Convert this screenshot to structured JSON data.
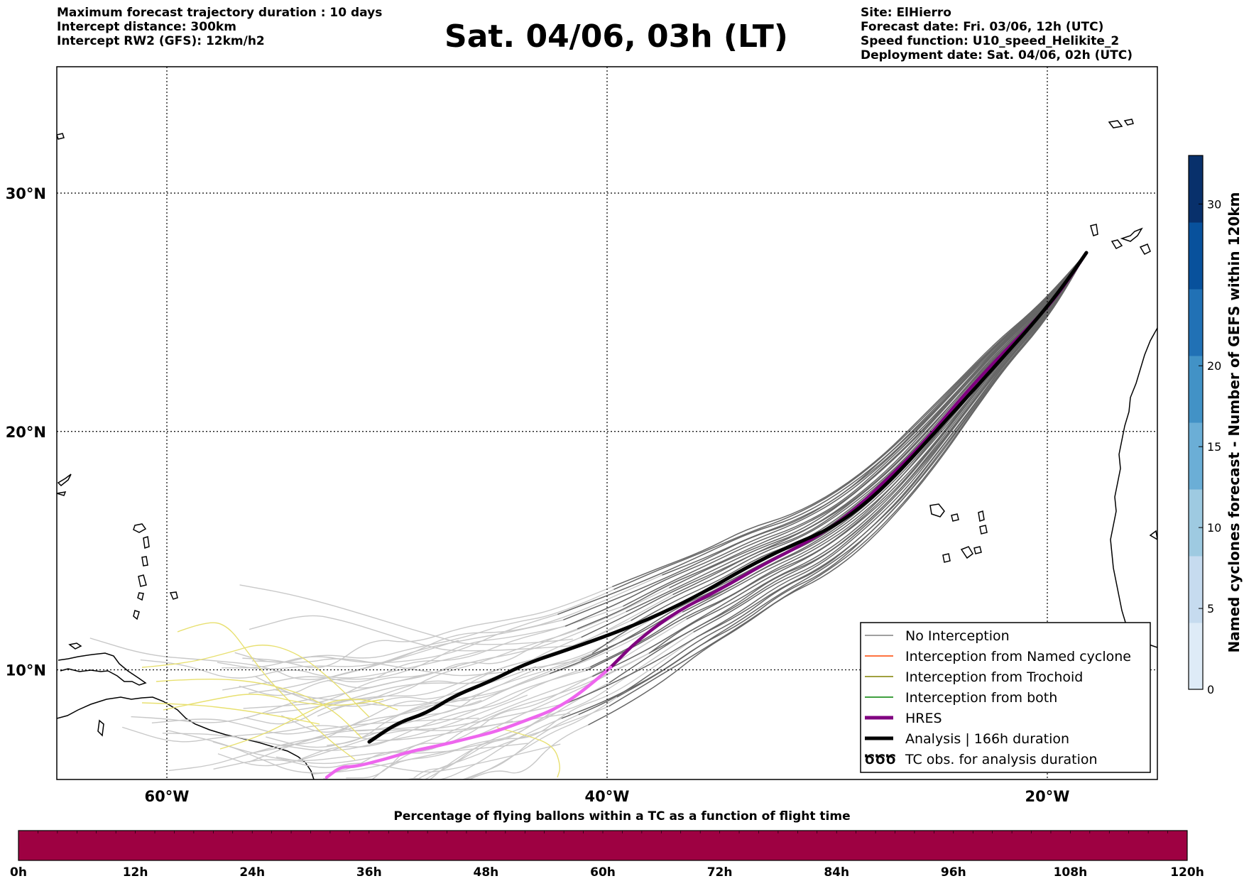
{
  "header": {
    "left": [
      "Maximum forecast trajectory duration : 10 days",
      "Intercept distance: 300km",
      "Intercept RW2 (GFS):  12km/h2"
    ],
    "title": "Sat. 04/06, 03h (LT)",
    "right": [
      "Site: ElHierro",
      "Forecast date: Fri. 03/06, 12h (UTC)",
      "Speed function: U10_speed_Helikite_2",
      "Deployment date: Sat. 04/06, 02h (UTC)"
    ]
  },
  "map": {
    "lat_labels": [
      "30°N",
      "20°N",
      "10°N"
    ],
    "lon_labels": [
      "60°W",
      "40°W",
      "20°W"
    ],
    "lat_values": [
      30,
      20,
      10
    ],
    "lon_values": [
      -60,
      -40,
      -20
    ],
    "extent": {
      "lon_min": -65,
      "lon_max": -15,
      "lat_min": 5.4,
      "lat_max": 35.3
    }
  },
  "legend": {
    "items": [
      {
        "label": "No Interception",
        "color": "#808080",
        "kind": "thin"
      },
      {
        "label": "Interception from Named cyclone",
        "color": "#ff4500",
        "kind": "thin"
      },
      {
        "label": "Interception from Trochoid",
        "color": "#808000",
        "kind": "thin"
      },
      {
        "label": "Interception from both",
        "color": "#008000",
        "kind": "thin"
      },
      {
        "label": "HRES",
        "color": "#800080",
        "kind": "thick"
      },
      {
        "label": "Analysis | 166h duration",
        "color": "#000000",
        "kind": "thick"
      },
      {
        "label": "TC obs. for analysis duration",
        "color": "#000000",
        "kind": "symbol"
      }
    ],
    "symbol": "ԾԾԾ"
  },
  "colorbar": {
    "label": "Named cyclones forecast - Number of GEFS within 120km",
    "ticks": [
      "0",
      "5",
      "10",
      "15",
      "20",
      "30"
    ],
    "colors": [
      "#deebf7",
      "#c6dbef",
      "#9ecae1",
      "#6baed6",
      "#4292c6",
      "#2171b5",
      "#08519c",
      "#08306b"
    ]
  },
  "time_bar": {
    "title": "Percentage of flying ballons within a TC as a function of flight time",
    "color": "#9e0142",
    "ticks": [
      "0h",
      "12h",
      "24h",
      "36h",
      "48h",
      "60h",
      "72h",
      "84h",
      "96h",
      "108h",
      "120h"
    ]
  },
  "colors": {
    "hres": "#800080",
    "hres_late": "#ee66ee",
    "analysis": "#000000",
    "ensemble": "#666666",
    "ensemble_late": "#c8c8c8",
    "yellow": "#e8e070"
  }
}
